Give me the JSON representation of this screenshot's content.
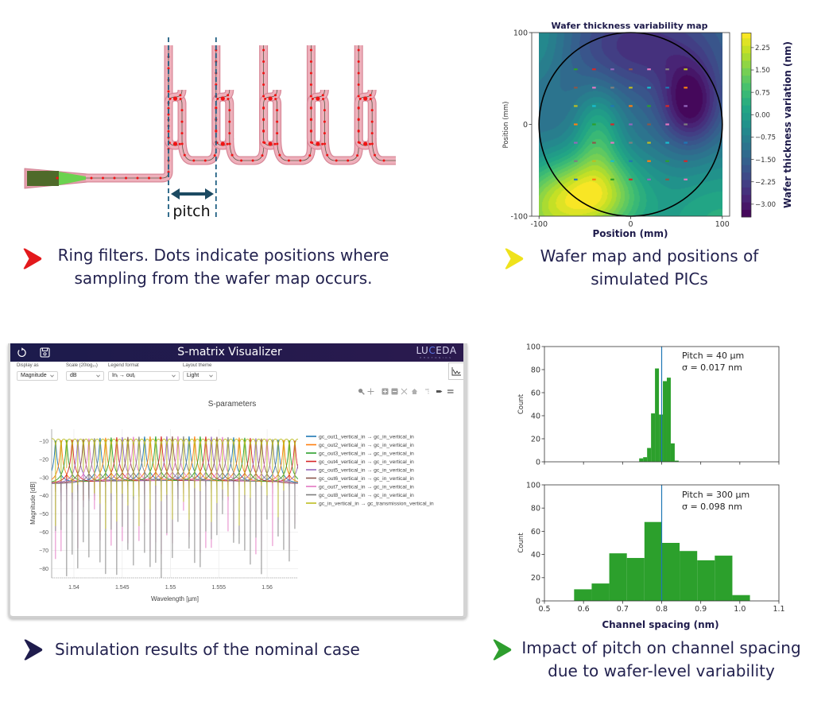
{
  "ring_diagram": {
    "ring_count": 5,
    "pitch_label": "pitch",
    "dot_color": "#f01414",
    "waveguide_color": "#eeb0bb",
    "pitch_guide_color": "#1f5f82",
    "arrow_color": "#1c4a62"
  },
  "captions": {
    "ring": {
      "line1": "Ring filters. Dots indicate positions where",
      "line2": "sampling from the wafer map occurs.",
      "chevron_color": "#e3191c"
    },
    "wafer": {
      "line1": "Wafer map and positions of",
      "line2": "simulated PICs",
      "chevron_color": "#efe21c"
    },
    "simulation": {
      "line1": "Simulation results of the nominal case",
      "chevron_color": "#1f1c4d"
    },
    "pitch": {
      "line1": "Impact of pitch on channel spacing",
      "line2": "due to wafer-level variability",
      "chevron_color": "#2e9e2e"
    }
  },
  "smatrix_app": {
    "title": "S-matrix Visualizer",
    "logo": {
      "prefix": "LU",
      "highlight": "C",
      "suffix": "EDA",
      "subtitle": "PHOTONICS"
    },
    "controls": [
      {
        "label": "Display as",
        "value": "Magnitude"
      },
      {
        "label": "Scale (20log₁₀)",
        "value": "dB"
      },
      {
        "label": "Legend format",
        "value": "Inᵢ → outⱼ"
      },
      {
        "label": "Layout theme",
        "value": "Light"
      }
    ]
  },
  "chart_data": [
    {
      "type": "heatmap",
      "title": "Wafer thickness variability map",
      "xlabel": "Position (mm)",
      "ylabel": "Position (mm)",
      "xlim": [
        -108,
        108
      ],
      "ylim": [
        -100,
        100
      ],
      "extent": [
        -100,
        100
      ],
      "xticks": [
        -100,
        0,
        100
      ],
      "xtick_labels": [
        "-100",
        "0",
        "100"
      ],
      "yticks": [
        100,
        0,
        -100
      ],
      "ytick_labels": [
        "100",
        "0",
        "-100"
      ],
      "colormap": "viridis",
      "colorbar": {
        "label": "Wafer thickness variation (nm)",
        "range": [
          -3.43,
          2.74
        ],
        "level_step": 0.25,
        "ticks": [
          2.25,
          1.5,
          0.75,
          0,
          -0.75,
          -1.5,
          -2.25,
          -3.0
        ],
        "tick_labels": [
          "2.25",
          "1.50",
          "0.75",
          "0.00",
          "−0.75",
          "−1.50",
          "−2.25",
          "−3.00"
        ]
      },
      "wafer_outline": {
        "center": [
          0,
          0
        ],
        "radius_mm": 100,
        "color": "#000000"
      },
      "sample_points": {
        "x": [
          -60,
          -40,
          -20,
          0,
          20,
          40,
          60
        ],
        "y": [
          -60,
          -40,
          -20,
          0,
          20,
          40,
          60
        ],
        "color_cycle": [
          "#1f77b4",
          "#ff7f0e",
          "#2ca02c",
          "#d62728",
          "#9467bd",
          "#8c564b",
          "#e377c2",
          "#7f7f7f",
          "#bcbd22",
          "#17becf"
        ]
      },
      "field_model": {
        "base": -1.2,
        "gaussians": [
          {
            "x": -42,
            "y": -78,
            "sx": 38,
            "sy": 32,
            "amp": 3.3
          },
          {
            "x": -35,
            "y": -10,
            "sx": 18,
            "sy": 35,
            "amp": 1.5
          },
          {
            "x": 65,
            "y": 22,
            "sx": 22,
            "sy": 32,
            "amp": -2.3
          },
          {
            "x": 10,
            "y": 85,
            "sx": 55,
            "sy": 35,
            "amp": -1.4
          },
          {
            "x": 100,
            "y": -110,
            "sx": 60,
            "sy": 55,
            "amp": 1.6
          },
          {
            "x": -110,
            "y": 95,
            "sx": 30,
            "sy": 35,
            "amp": 1.0
          },
          {
            "x": -100,
            "y": -100,
            "sx": 35,
            "sy": 40,
            "amp": 2.0
          }
        ]
      }
    },
    {
      "type": "line",
      "title": "S-parameters",
      "xlabel": "Wavelength [µm]",
      "ylabel": "Magnitude [dB]",
      "xlim": [
        1.5377,
        1.5632
      ],
      "ylim": [
        -85,
        -3.5
      ],
      "xticks": [
        1.54,
        1.545,
        1.55,
        1.555,
        1.56
      ],
      "xtick_labels": [
        "1.54",
        "1.545",
        "1.55",
        "1.555",
        "1.56"
      ],
      "yticks": [
        -10,
        -20,
        -30,
        -40,
        -50,
        -60,
        -70,
        -80
      ],
      "ytick_labels": [
        "−10",
        "−20",
        "−30",
        "−40",
        "−50",
        "−60",
        "−70",
        "−80"
      ],
      "grid": true,
      "legend": "right",
      "series": [
        {
          "name": "gc_out1_vertical_in → gc_in_vertical_in",
          "color": "#1f77b4"
        },
        {
          "name": "gc_out2_vertical_in → gc_in_vertical_in",
          "color": "#ff7f0e"
        },
        {
          "name": "gc_out3_vertical_in → gc_in_vertical_in",
          "color": "#2ca02c"
        },
        {
          "name": "gc_out4_vertical_in → gc_in_vertical_in",
          "color": "#d62728"
        },
        {
          "name": "gc_out5_vertical_in → gc_in_vertical_in",
          "color": "#9467bd"
        },
        {
          "name": "gc_out6_vertical_in → gc_in_vertical_in",
          "color": "#8c564b"
        },
        {
          "name": "gc_out7_vertical_in → gc_in_vertical_in",
          "color": "#e377c2"
        },
        {
          "name": "gc_out8_vertical_in → gc_in_vertical_in",
          "color": "#7f7f7f"
        },
        {
          "name": "gc_in_vertical_in → gc_transmission_vertical_in",
          "color": "#bcbd22"
        }
      ],
      "model": {
        "drop_channels": 8,
        "channel_spacing_um": 0.000576,
        "first_resonance_um": 1.5381,
        "peak_dB_center": -7.5,
        "peak_dB_edge": -10,
        "baseline_dB": -33.5,
        "resonance_halfwidth_um": 5.5e-05,
        "dip_halfwidth_um": 2.5e-06,
        "through_dB": -8.5,
        "through_scallop_halfwidth_um": 9e-05
      }
    },
    {
      "type": "bar",
      "subtype": "histogram",
      "xlabel": "",
      "ylabel": "Count",
      "xlim": [
        0.5,
        1.1
      ],
      "ylim": [
        0,
        100
      ],
      "xticks": [
        0.5,
        0.6,
        0.7,
        0.8,
        0.9,
        1.0,
        1.1
      ],
      "yticks": [
        0,
        20,
        40,
        60,
        80,
        100
      ],
      "ytick_labels": [
        "0",
        "20",
        "40",
        "60",
        "80",
        "100"
      ],
      "bin_start": 0.7425,
      "bin_width": 0.0101,
      "values": [
        3,
        4,
        12,
        42,
        81,
        41,
        70,
        73,
        16,
        1
      ],
      "bar_color": "#2ca02c",
      "reference_line": {
        "x": 0.8,
        "color": "#1f77b4"
      },
      "annotation": [
        "Pitch = 40 µm",
        "σ = 0.017 nm"
      ]
    },
    {
      "type": "bar",
      "subtype": "histogram",
      "xlabel": "Channel spacing (nm)",
      "ylabel": "Count",
      "xlim": [
        0.5,
        1.1
      ],
      "ylim": [
        0,
        100
      ],
      "xticks": [
        0.5,
        0.6,
        0.7,
        0.8,
        0.9,
        1.0,
        1.1
      ],
      "xtick_labels": [
        "0.5",
        "0.6",
        "0.7",
        "0.8",
        "0.9",
        "1.0",
        "1.1"
      ],
      "yticks": [
        0,
        20,
        40,
        60,
        80,
        100
      ],
      "ytick_labels": [
        "0",
        "20",
        "40",
        "60",
        "80",
        "100"
      ],
      "bin_start": 0.5759,
      "bin_width": 0.045,
      "values": [
        10,
        15,
        41,
        37,
        68,
        50,
        43,
        35,
        39,
        5
      ],
      "bar_color": "#2ca02c",
      "reference_line": {
        "x": 0.8,
        "color": "#1f77b4"
      },
      "annotation": [
        "Pitch = 300 µm",
        "σ = 0.098 nm"
      ]
    }
  ]
}
